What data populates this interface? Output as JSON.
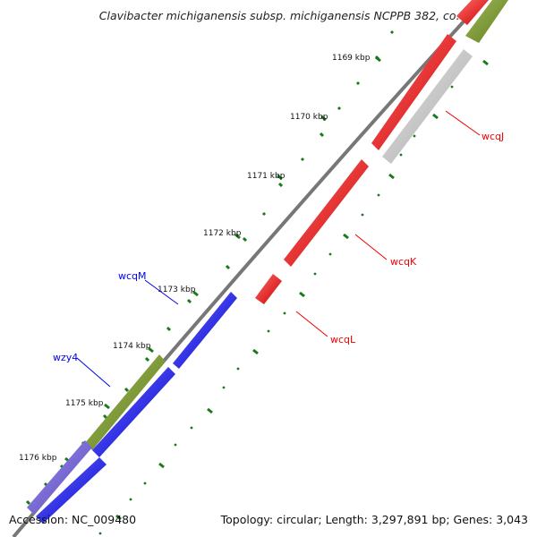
{
  "title": "Clavibacter michiganensis subsp. michiganensis NCPPB 382, co…",
  "footer": {
    "accession": "Accession: NC_009480",
    "summary": "Topology: circular; Length: 3,297,891 bp; Genes: 3,043"
  },
  "ticks": [
    "1169 kbp",
    "1170 kbp",
    "1171 kbp",
    "1172 kbp",
    "1173 kbp",
    "1174 kbp",
    "1175 kbp",
    "1176 kbp"
  ],
  "genes": {
    "wcqJ": "wcqJ",
    "wcqK": "wcqK",
    "wcqL": "wcqL",
    "wcqM": "wcqM",
    "wzy4": "wzy4"
  },
  "colors": {
    "forward_cds": "#0000ee",
    "reverse_cds": "#ee0000",
    "olive": "#6b8e23",
    "purple": "#6a5acd",
    "grey_feature": "#c0c0c0",
    "backbone": "#888888",
    "tick_green": "#1a7a1a"
  }
}
